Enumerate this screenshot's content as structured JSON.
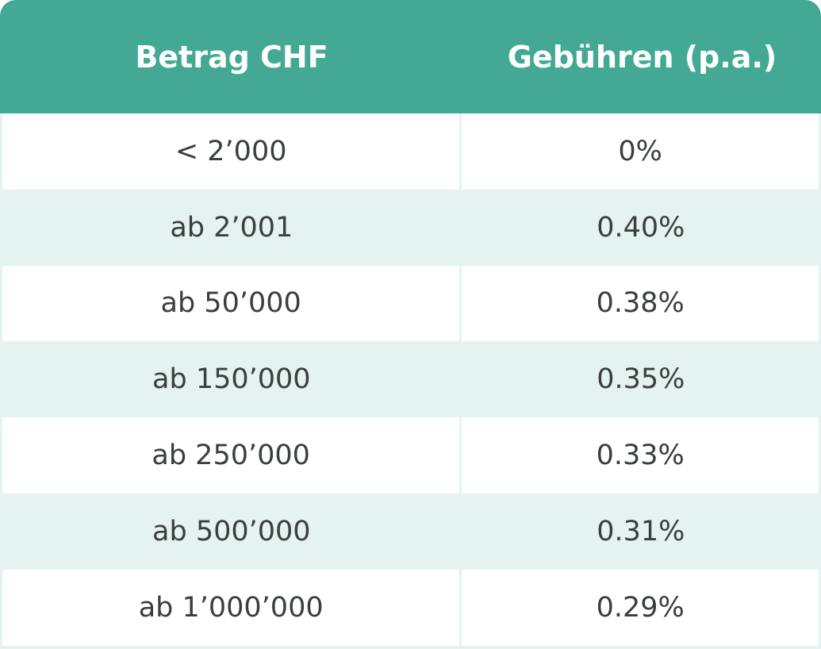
{
  "header": {
    "amount": "Betrag CHF",
    "fees": "Gebühren (p.a.)"
  },
  "colors": {
    "header": "#44a994",
    "stripe": "#e4f3ef",
    "text": "#3a3f3d"
  },
  "rows": [
    {
      "amount": "< 2’000",
      "fee": "0%"
    },
    {
      "amount": "ab 2’001",
      "fee": "0.40%"
    },
    {
      "amount": "ab 50’000",
      "fee": "0.38%"
    },
    {
      "amount": "ab 150’000",
      "fee": "0.35%"
    },
    {
      "amount": "ab 250’000",
      "fee": "0.33%"
    },
    {
      "amount": "ab 500’000",
      "fee": "0.31%"
    },
    {
      "amount": "ab 1’000’000",
      "fee": "0.29%"
    }
  ]
}
